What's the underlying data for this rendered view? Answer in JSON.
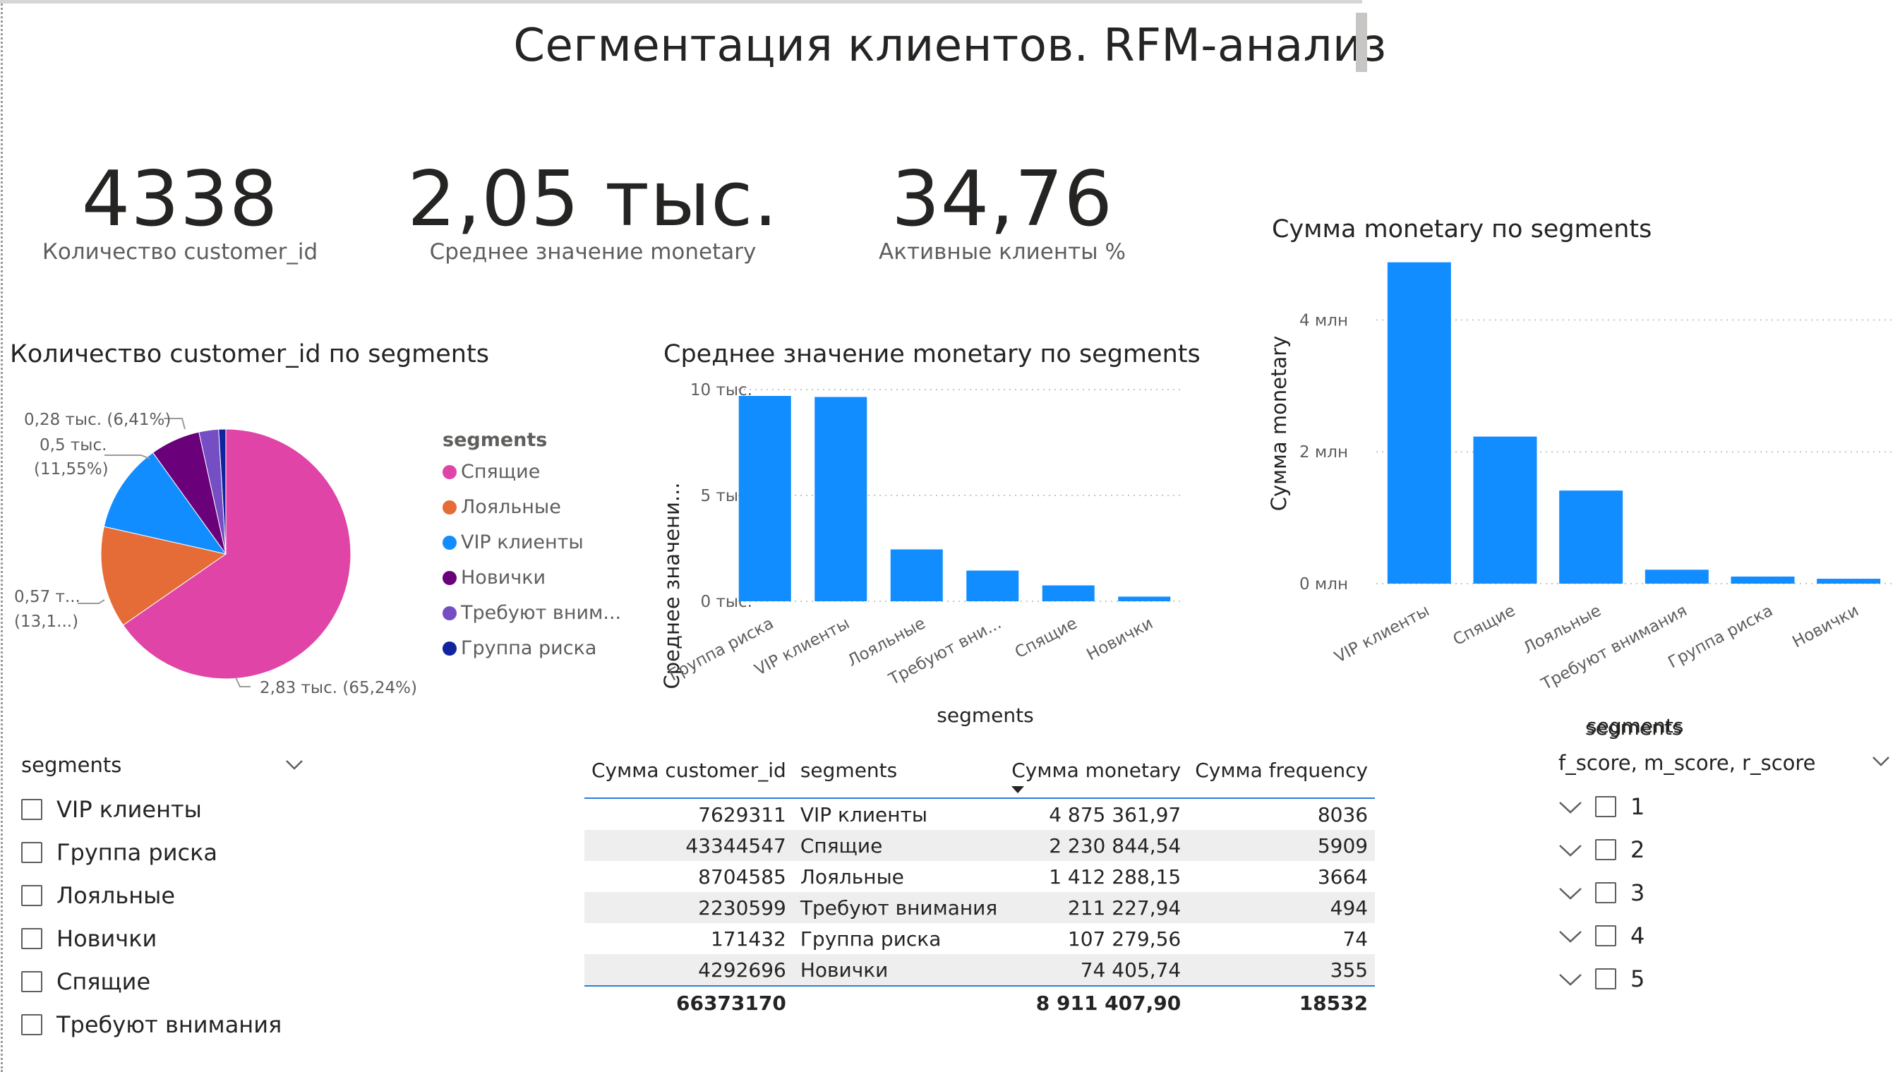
{
  "page": {
    "title": "Сегментация клиентов. RFM-анализ"
  },
  "kpis": [
    {
      "value": "4338",
      "label": "Количество customer_id"
    },
    {
      "value": "2,05 тыс.",
      "label": "Среднее значение monetary"
    },
    {
      "value": "34,76",
      "label": "Активные клиенты %"
    }
  ],
  "pie": {
    "title": "Количество customer_id по segments",
    "legend_title": "segments",
    "legend": [
      {
        "label": "Спящие",
        "color": "#E044A7"
      },
      {
        "label": "Лояльные",
        "color": "#E66C37"
      },
      {
        "label": "VIP клиенты",
        "color": "#118DFF"
      },
      {
        "label": "Новички",
        "color": "#6B007B"
      },
      {
        "label": "Требуют вним...",
        "color": "#744EC2"
      },
      {
        "label": "Группа риска",
        "color": "#12239E"
      }
    ],
    "labels": {
      "l1a": "0,28 тыс. (6,41%)",
      "l2a": "0,5 тыс.",
      "l2b": "(11,55%)",
      "l3a": "0,57 т...",
      "l3b": "(13,1...)",
      "l4a": "2,83 тыс. (65,24%)"
    }
  },
  "chart_data": [
    {
      "type": "pie",
      "title": "Количество customer_id по segments",
      "categories": [
        "Спящие",
        "Лояльные",
        "VIP клиенты",
        "Новички",
        "Требуют внимания",
        "Группа риска"
      ],
      "values": [
        2830,
        570,
        500,
        280,
        110,
        40
      ],
      "percent_labels": [
        "65,24%",
        "13,1...",
        "11,55%",
        "6,41%",
        "",
        ""
      ],
      "legend_position": "right"
    },
    {
      "type": "bar",
      "title": "Среднее значение monetary по segments",
      "xlabel": "segments",
      "ylabel": "Среднее значени...",
      "categories": [
        "Группа риска",
        "VIP клиенты",
        "Лояльные",
        "Требуют вни...",
        "Спящие",
        "Новички"
      ],
      "values": [
        9700,
        9650,
        2450,
        1450,
        750,
        220
      ],
      "yticks": [
        "0 тыс.",
        "5 тыс.",
        "10 тыс."
      ],
      "ylim": [
        0,
        10000
      ],
      "color": "#118DFF"
    },
    {
      "type": "bar",
      "title": "Сумма monetary по segments",
      "xlabel": "segments",
      "ylabel": "Сумма monetary",
      "categories": [
        "VIP клиенты",
        "Спящие",
        "Лояльные",
        "Требуют внимания",
        "Группа риска",
        "Новички"
      ],
      "values": [
        4875361.97,
        2230844.54,
        1412288.15,
        211227.94,
        107279.56,
        74405.74
      ],
      "yticks": [
        "0 млн",
        "2 млн",
        "4 млн"
      ],
      "ylim": [
        0,
        5000000
      ],
      "color": "#118DFF"
    }
  ],
  "bar1": {
    "title": "Среднее значение monetary по segments",
    "ylabel": "Среднее значени...",
    "xlabel": "segments"
  },
  "bar2": {
    "title": "Сумма monetary по segments",
    "ylabel": "Сумма monetary",
    "xlabel": "segments"
  },
  "slicer_segments": {
    "header": "segments",
    "items": [
      "VIP клиенты",
      "Группа риска",
      "Лояльные",
      "Новички",
      "Спящие",
      "Требуют внимания"
    ]
  },
  "table": {
    "headers": [
      "Сумма customer_id",
      "segments",
      "Сумма monetary",
      "Сумма frequency"
    ],
    "rows": [
      {
        "customer_id": "7629311",
        "segment": "VIP клиенты",
        "monetary": "4 875 361,97",
        "frequency": "8036"
      },
      {
        "customer_id": "43344547",
        "segment": "Спящие",
        "monetary": "2 230 844,54",
        "frequency": "5909"
      },
      {
        "customer_id": "8704585",
        "segment": "Лояльные",
        "monetary": "1 412 288,15",
        "frequency": "3664"
      },
      {
        "customer_id": "2230599",
        "segment": "Требуют внимания",
        "monetary": "211 227,94",
        "frequency": "494"
      },
      {
        "customer_id": "171432",
        "segment": "Группа риска",
        "monetary": "107 279,56",
        "frequency": "74"
      },
      {
        "customer_id": "4292696",
        "segment": "Новички",
        "monetary": "74 405,74",
        "frequency": "355"
      }
    ],
    "total": {
      "customer_id": "66373170",
      "segment": "",
      "monetary": "8 911 407,90",
      "frequency": "18532"
    }
  },
  "slicer_scores": {
    "header_top": "segments",
    "header": "f_score, m_score, r_score",
    "items": [
      "1",
      "2",
      "3",
      "4",
      "5"
    ]
  }
}
